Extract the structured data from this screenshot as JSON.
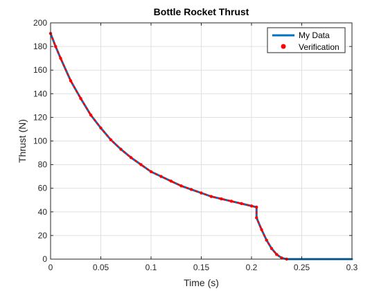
{
  "chart_data": {
    "type": "line",
    "title": "Bottle Rocket Thrust",
    "xlabel": "Time (s)",
    "ylabel": "Thrust (N)",
    "xlim": [
      0,
      0.3
    ],
    "ylim": [
      0,
      200
    ],
    "xticks": [
      0,
      0.05,
      0.1,
      0.15,
      0.2,
      0.25,
      0.3
    ],
    "xtick_labels": [
      "0",
      "0.05",
      "0.1",
      "0.15",
      "0.2",
      "0.25",
      "0.3"
    ],
    "yticks": [
      0,
      20,
      40,
      60,
      80,
      100,
      120,
      140,
      160,
      180,
      200
    ],
    "ytick_labels": [
      "0",
      "20",
      "40",
      "60",
      "80",
      "100",
      "120",
      "140",
      "160",
      "180",
      "200"
    ],
    "grid": true,
    "legend_position": "top-right",
    "series": [
      {
        "name": "My Data",
        "color": "#0072BD",
        "style": "line",
        "x": [
          0,
          0.005,
          0.01,
          0.02,
          0.03,
          0.04,
          0.05,
          0.06,
          0.07,
          0.08,
          0.09,
          0.1,
          0.11,
          0.12,
          0.13,
          0.14,
          0.15,
          0.16,
          0.17,
          0.18,
          0.19,
          0.2,
          0.205,
          0.205,
          0.21,
          0.215,
          0.22,
          0.225,
          0.23,
          0.235,
          0.25,
          0.3
        ],
        "y": [
          191,
          180,
          170,
          151,
          136,
          122,
          111,
          101,
          93,
          86,
          80,
          74,
          70,
          66,
          62,
          59,
          56,
          53,
          51,
          49,
          47,
          45,
          44,
          35,
          25,
          16,
          9,
          4,
          1,
          0,
          0,
          0
        ]
      },
      {
        "name": "Verification",
        "color": "#FF0000",
        "style": "dots",
        "x": [
          0,
          0.005,
          0.01,
          0.02,
          0.03,
          0.04,
          0.05,
          0.06,
          0.07,
          0.08,
          0.09,
          0.1,
          0.11,
          0.12,
          0.13,
          0.14,
          0.15,
          0.16,
          0.17,
          0.18,
          0.19,
          0.2,
          0.205,
          0.205,
          0.21,
          0.215,
          0.22,
          0.225,
          0.23,
          0.235
        ],
        "y": [
          191,
          180,
          170,
          151,
          136,
          122,
          111,
          101,
          93,
          86,
          80,
          74,
          70,
          66,
          62,
          59,
          56,
          53,
          51,
          49,
          47,
          45,
          44,
          35,
          25,
          16,
          9,
          4,
          1,
          0
        ]
      }
    ]
  }
}
